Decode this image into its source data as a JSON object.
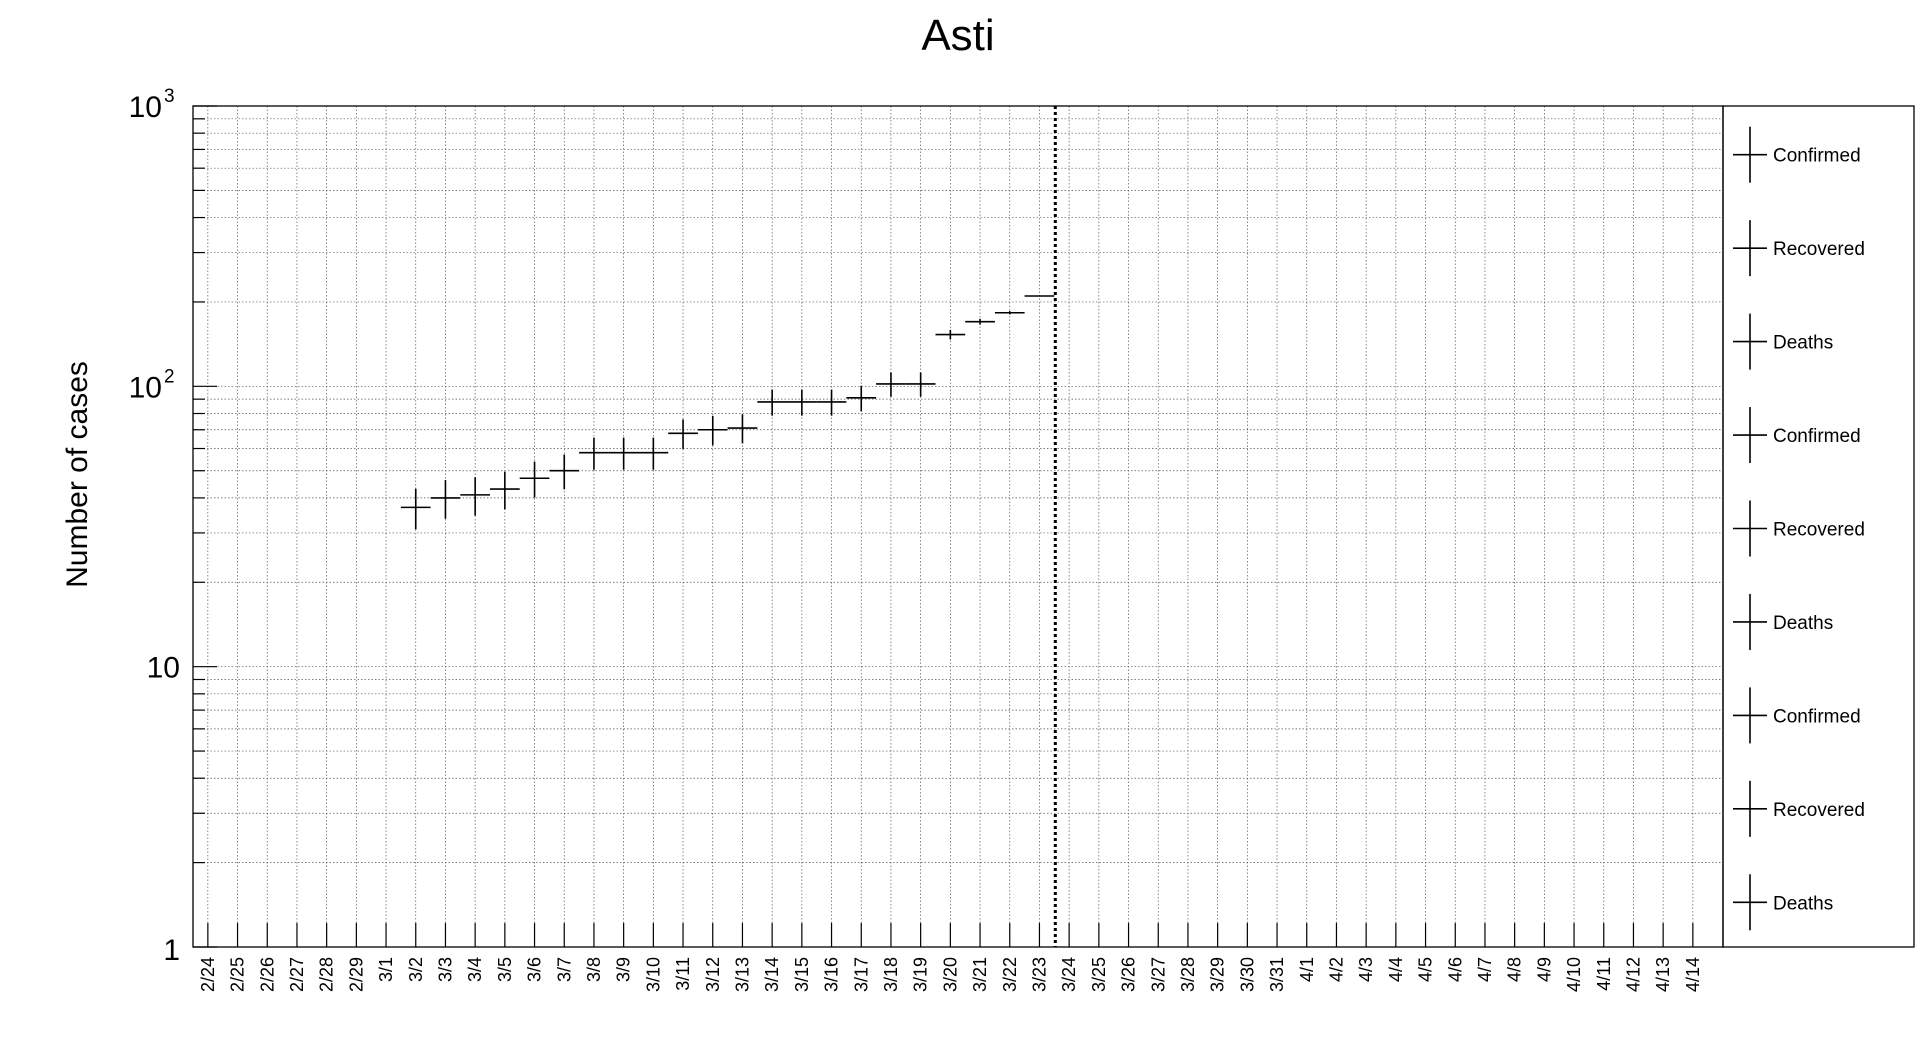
{
  "chart_data": {
    "type": "scatter",
    "title": "Asti",
    "xlabel": "",
    "ylabel": "Number of cases",
    "y_scale": "log",
    "ylim": [
      1,
      1000
    ],
    "grid": true,
    "legend_position": "right",
    "y_ticks": [
      {
        "base": "10",
        "exp": "3"
      },
      {
        "base": "10",
        "exp": "2"
      },
      {
        "base": "10",
        "exp": ""
      },
      {
        "base": "1",
        "exp": ""
      }
    ],
    "categories": [
      "2/24",
      "2/25",
      "2/26",
      "2/27",
      "2/28",
      "2/29",
      "3/1",
      "3/2",
      "3/3",
      "3/4",
      "3/5",
      "3/6",
      "3/7",
      "3/8",
      "3/9",
      "3/10",
      "3/11",
      "3/12",
      "3/13",
      "3/14",
      "3/15",
      "3/16",
      "3/17",
      "3/18",
      "3/19",
      "3/20",
      "3/21",
      "3/22",
      "3/23",
      "3/24",
      "3/25",
      "3/26",
      "3/27",
      "3/28",
      "3/29",
      "3/30",
      "3/31",
      "4/1",
      "4/2",
      "4/3",
      "4/4",
      "4/5",
      "4/6",
      "4/7",
      "4/8",
      "4/9",
      "4/10",
      "4/11",
      "4/12",
      "4/13",
      "4/14"
    ],
    "today_marker": "3/24",
    "series": [
      {
        "name": "Confirmed",
        "color": "#000000",
        "points": [
          {
            "x": "3/2",
            "y": 37,
            "err": 6.1
          },
          {
            "x": "3/3",
            "y": 40,
            "err": 6.3
          },
          {
            "x": "3/4",
            "y": 41,
            "err": 6.4
          },
          {
            "x": "3/5",
            "y": 43,
            "err": 6.6
          },
          {
            "x": "3/6",
            "y": 47,
            "err": 6.9
          },
          {
            "x": "3/7",
            "y": 50,
            "err": 7.1
          },
          {
            "x": "3/8",
            "y": 58,
            "err": 7.6
          },
          {
            "x": "3/9",
            "y": 58,
            "err": 7.6
          },
          {
            "x": "3/10",
            "y": 58,
            "err": 7.6
          },
          {
            "x": "3/11",
            "y": 68,
            "err": 8.2
          },
          {
            "x": "3/12",
            "y": 70,
            "err": 8.4
          },
          {
            "x": "3/13",
            "y": 71,
            "err": 8.4
          },
          {
            "x": "3/14",
            "y": 88,
            "err": 9.4
          },
          {
            "x": "3/15",
            "y": 88,
            "err": 9.4
          },
          {
            "x": "3/16",
            "y": 88,
            "err": 9.4
          },
          {
            "x": "3/17",
            "y": 91,
            "err": 9.5
          },
          {
            "x": "3/18",
            "y": 102,
            "err": 10.1
          },
          {
            "x": "3/19",
            "y": 102,
            "err": 10.1
          },
          {
            "x": "3/20",
            "y": 153,
            "err": 6.0
          },
          {
            "x": "3/21",
            "y": 170,
            "err": 4.0
          },
          {
            "x": "3/22",
            "y": 183,
            "err": 2.5
          },
          {
            "x": "3/23",
            "y": 210,
            "err": 0
          }
        ]
      },
      {
        "name": "Recovered",
        "color": "#000000",
        "points": []
      },
      {
        "name": "Deaths",
        "color": "#000000",
        "points": []
      }
    ],
    "legend_entries": [
      "Confirmed",
      "Recovered",
      "Deaths",
      "Confirmed",
      "Recovered",
      "Deaths",
      "Confirmed",
      "Recovered",
      "Deaths"
    ]
  }
}
